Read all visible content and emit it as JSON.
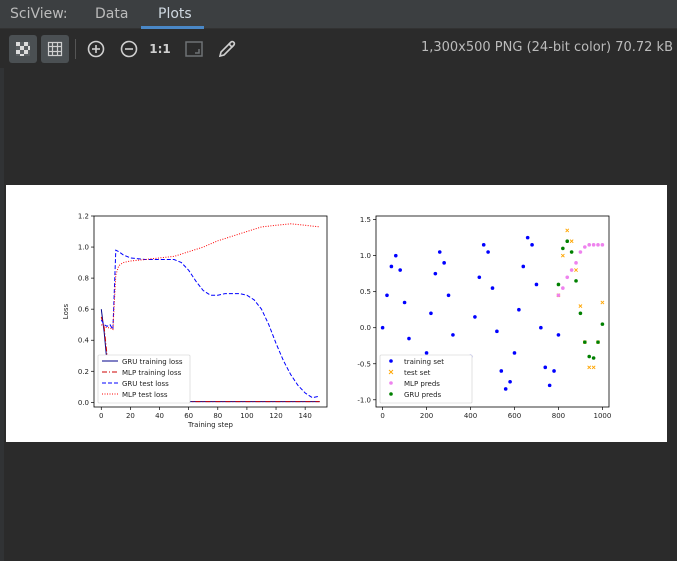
{
  "app": {
    "title": "SciView:"
  },
  "tabs": [
    {
      "label": "Data"
    },
    {
      "label": "Plots"
    }
  ],
  "toolbar": {
    "zoom_actual_label": "1:1",
    "icons": [
      "transparency-grid-icon",
      "pixel-grid-icon",
      "zoom-in-icon",
      "zoom-out-icon",
      "actual-size-label",
      "fit-screen-icon",
      "color-picker-icon"
    ]
  },
  "image_info": "1,300x500 PNG (24-bit color) 70.72 kB",
  "colors": {
    "accent": "#4a88c7",
    "toolbar_bg": "#3c3f41",
    "editor_bg": "#2b2b2b"
  },
  "chart_data": [
    {
      "type": "line",
      "xlabel": "Training step",
      "ylabel": "Loss",
      "xlim": [
        -5,
        155
      ],
      "ylim": [
        -0.03,
        1.2
      ],
      "xticks": [
        0,
        20,
        40,
        60,
        80,
        100,
        120,
        140
      ],
      "yticks": [
        0.0,
        0.2,
        0.4,
        0.6,
        0.8,
        1.0,
        1.2
      ],
      "legend_position": "lower-left",
      "series": [
        {
          "name": "GRU training loss",
          "color": "#00008b",
          "style": "solid",
          "x": [
            0,
            2,
            4,
            6,
            8,
            10,
            20,
            40,
            60,
            80,
            100,
            120,
            140,
            150
          ],
          "y": [
            0.6,
            0.45,
            0.25,
            0.01,
            0.005,
            0.005,
            0.005,
            0.005,
            0.005,
            0.005,
            0.005,
            0.005,
            0.005,
            0.005
          ]
        },
        {
          "name": "MLP training loss",
          "color": "#cc0000",
          "style": "dashdot",
          "x": [
            0,
            2,
            4,
            6,
            8,
            10,
            20,
            40,
            60,
            80,
            100,
            120,
            140,
            150
          ],
          "y": [
            0.55,
            0.48,
            0.3,
            0.01,
            0.005,
            0.005,
            0.005,
            0.005,
            0.005,
            0.005,
            0.005,
            0.005,
            0.005,
            0.005
          ]
        },
        {
          "name": "GRU test loss",
          "color": "#0000ff",
          "style": "dashed",
          "x": [
            0,
            2,
            4,
            6,
            8,
            10,
            12,
            15,
            20,
            30,
            40,
            50,
            55,
            60,
            65,
            70,
            75,
            80,
            85,
            90,
            95,
            100,
            105,
            110,
            115,
            120,
            125,
            130,
            135,
            140,
            145,
            150
          ],
          "y": [
            0.53,
            0.5,
            0.49,
            0.5,
            0.47,
            0.98,
            0.97,
            0.95,
            0.93,
            0.92,
            0.92,
            0.92,
            0.9,
            0.85,
            0.78,
            0.72,
            0.69,
            0.69,
            0.7,
            0.7,
            0.7,
            0.69,
            0.66,
            0.6,
            0.5,
            0.38,
            0.27,
            0.18,
            0.11,
            0.06,
            0.03,
            0.04
          ]
        },
        {
          "name": "MLP test loss",
          "color": "#ff0000",
          "style": "dotted",
          "x": [
            0,
            2,
            4,
            6,
            8,
            10,
            12,
            15,
            20,
            30,
            40,
            50,
            60,
            70,
            80,
            90,
            100,
            110,
            120,
            130,
            140,
            150
          ],
          "y": [
            0.5,
            0.49,
            0.48,
            0.48,
            0.47,
            0.82,
            0.88,
            0.9,
            0.91,
            0.92,
            0.93,
            0.94,
            0.97,
            1.0,
            1.04,
            1.07,
            1.1,
            1.13,
            1.14,
            1.15,
            1.14,
            1.13
          ]
        }
      ]
    },
    {
      "type": "scatter",
      "xlabel": "",
      "ylabel": "",
      "xlim": [
        -30,
        1030
      ],
      "ylim": [
        -1.1,
        1.55
      ],
      "xticks": [
        0,
        200,
        400,
        600,
        800,
        1000
      ],
      "yticks": [
        -1.0,
        -0.5,
        0.0,
        0.5,
        1.0,
        1.5
      ],
      "legend_position": "lower-left",
      "series": [
        {
          "name": "training set",
          "color": "#0000ff",
          "marker": "dot",
          "x": [
            0,
            20,
            40,
            60,
            80,
            100,
            120,
            140,
            160,
            180,
            200,
            220,
            240,
            260,
            280,
            300,
            320,
            340,
            360,
            380,
            400,
            420,
            440,
            460,
            480,
            500,
            520,
            540,
            560,
            580,
            600,
            620,
            640,
            660,
            680,
            700,
            720,
            740,
            760,
            780,
            800
          ],
          "y": [
            0.0,
            0.45,
            0.85,
            1.0,
            0.8,
            0.35,
            -0.15,
            -0.55,
            -0.8,
            -0.75,
            -0.35,
            0.2,
            0.75,
            1.05,
            0.9,
            0.45,
            -0.1,
            -0.6,
            -0.9,
            -0.8,
            -0.4,
            0.15,
            0.7,
            1.15,
            1.05,
            0.55,
            -0.05,
            -0.6,
            -0.85,
            -0.75,
            -0.35,
            0.25,
            0.85,
            1.25,
            1.15,
            0.6,
            0.0,
            -0.55,
            -0.8,
            -0.6,
            -0.1
          ]
        },
        {
          "name": "test set",
          "color": "#ffa500",
          "marker": "x",
          "x": [
            800,
            820,
            840,
            860,
            880,
            900,
            920,
            940,
            960,
            980,
            1000
          ],
          "y": [
            0.45,
            1.0,
            1.35,
            1.2,
            0.8,
            0.3,
            -0.2,
            -0.55,
            -0.55,
            -0.2,
            0.35
          ]
        },
        {
          "name": "MLP preds",
          "color": "#ee82ee",
          "marker": "dot",
          "x": [
            800,
            820,
            840,
            860,
            880,
            900,
            920,
            940,
            960,
            980,
            1000
          ],
          "y": [
            0.45,
            0.55,
            0.7,
            0.8,
            0.9,
            1.05,
            1.12,
            1.15,
            1.15,
            1.15,
            1.15
          ]
        },
        {
          "name": "GRU preds",
          "color": "#008000",
          "marker": "dot",
          "x": [
            800,
            820,
            840,
            860,
            880,
            900,
            920,
            940,
            960,
            980,
            1000
          ],
          "y": [
            0.6,
            1.1,
            1.2,
            1.05,
            0.65,
            0.2,
            -0.2,
            -0.4,
            -0.42,
            -0.2,
            0.05
          ]
        }
      ]
    }
  ]
}
